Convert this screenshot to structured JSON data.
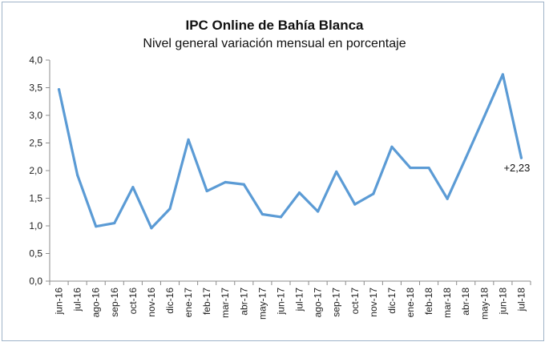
{
  "chart_data": {
    "type": "line",
    "title": "IPC Online de Bahía Blanca",
    "subtitle": "Nivel general variación mensual en porcentaje",
    "xlabel": "",
    "ylabel": "",
    "ylim": [
      0,
      4
    ],
    "yticks": [
      "0,0",
      "0,5",
      "1,0",
      "1,5",
      "2,0",
      "2,5",
      "3,0",
      "3,5",
      "4,0"
    ],
    "grid": false,
    "legend": "none",
    "line_color": "#5b9bd5",
    "categories": [
      "jun-16",
      "jul-16",
      "ago-16",
      "sep-16",
      "oct-16",
      "nov-16",
      "dic-16",
      "ene-17",
      "feb-17",
      "mar-17",
      "abr-17",
      "may-17",
      "jun-17",
      "jul-17",
      "ago-17",
      "sep-17",
      "oct-17",
      "nov-17",
      "dic-17",
      "ene-18",
      "feb-18",
      "mar-18",
      "abr-18",
      "may-18",
      "jun-18",
      "jul-18"
    ],
    "series": [
      {
        "values": [
          3.47,
          1.92,
          0.99,
          1.05,
          1.7,
          0.96,
          1.31,
          2.56,
          1.63,
          1.79,
          1.75,
          1.21,
          1.16,
          1.6,
          1.26,
          1.98,
          1.39,
          1.58,
          2.43,
          2.05,
          2.05,
          1.49,
          2.23,
          2.98,
          3.74,
          2.23
        ]
      }
    ],
    "annotations": [
      {
        "category": "jul-18",
        "text": "+2,23"
      }
    ]
  }
}
